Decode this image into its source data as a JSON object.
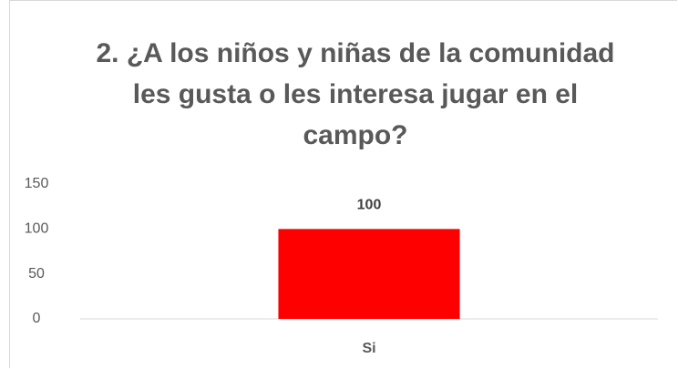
{
  "chart_data": {
    "type": "bar",
    "title": "2. ¿A los niños y niñas de la comunidad les gusta o les interesa jugar en el campo?",
    "categories": [
      "Si"
    ],
    "values": [
      100
    ],
    "color": "#ff0000",
    "ylim": [
      0,
      150
    ],
    "yticks": [
      0,
      50,
      100,
      150
    ],
    "grid": false
  }
}
